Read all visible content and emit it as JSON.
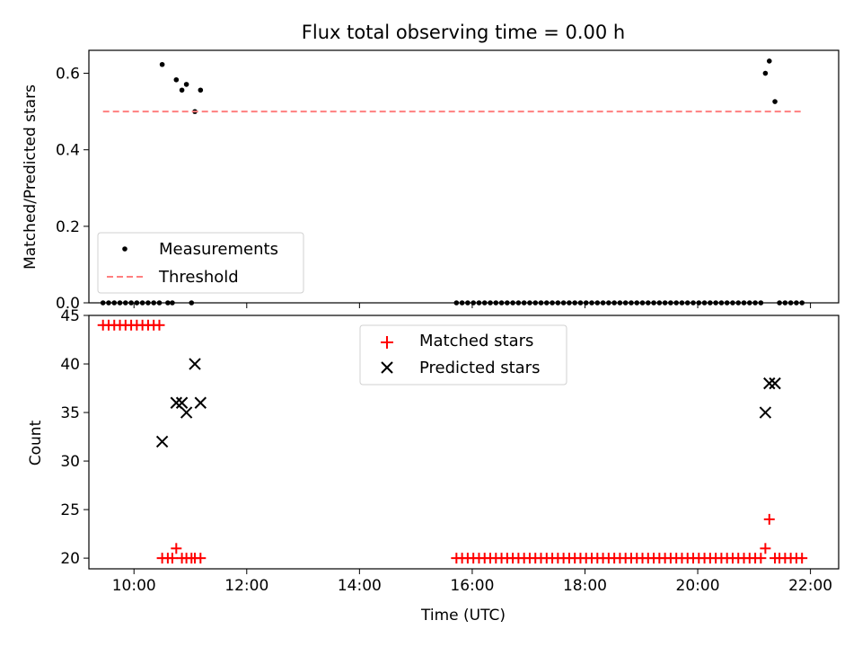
{
  "chart_data": [
    {
      "type": "scatter",
      "title": "Flux total observing time = 0.00 h",
      "xlabel": "",
      "ylabel": "Matched/Predicted stars",
      "xlim": [
        9.2,
        22.5
      ],
      "ylim": [
        0.0,
        0.66
      ],
      "yticks": [
        0.0,
        0.2,
        0.4,
        0.6
      ],
      "ytick_labels": [
        "0.0",
        "0.2",
        "0.4",
        "0.6"
      ],
      "xticks": [
        10,
        12,
        14,
        16,
        18,
        20,
        22
      ],
      "show_xtick_labels": false,
      "grid": false,
      "legend_position": "lower-left",
      "series": [
        {
          "name": "Measurements",
          "marker": "dot",
          "color": "#000000",
          "points": [
            [
              10.5,
              0.623
            ],
            [
              10.75,
              0.583
            ],
            [
              10.85,
              0.556
            ],
            [
              10.93,
              0.571
            ],
            [
              11.08,
              0.5
            ],
            [
              11.18,
              0.556
            ],
            [
              21.2,
              0.6
            ],
            [
              21.27,
              0.632
            ],
            [
              21.37,
              0.526
            ],
            [
              9.45,
              0.0
            ],
            [
              9.55,
              0.0
            ],
            [
              9.65,
              0.0
            ],
            [
              9.75,
              0.0
            ],
            [
              9.85,
              0.0
            ],
            [
              9.95,
              0.0
            ],
            [
              10.05,
              0.0
            ],
            [
              10.15,
              0.0
            ],
            [
              10.25,
              0.0
            ],
            [
              10.35,
              0.0
            ],
            [
              10.45,
              0.0
            ],
            [
              10.6,
              0.0
            ],
            [
              10.68,
              0.0
            ],
            [
              11.02,
              0.0
            ],
            [
              15.72,
              0.0
            ],
            [
              15.82,
              0.0
            ],
            [
              15.92,
              0.0
            ],
            [
              16.02,
              0.0
            ],
            [
              16.12,
              0.0
            ],
            [
              16.22,
              0.0
            ],
            [
              16.32,
              0.0
            ],
            [
              16.42,
              0.0
            ],
            [
              16.52,
              0.0
            ],
            [
              16.62,
              0.0
            ],
            [
              16.72,
              0.0
            ],
            [
              16.82,
              0.0
            ],
            [
              16.92,
              0.0
            ],
            [
              17.02,
              0.0
            ],
            [
              17.12,
              0.0
            ],
            [
              17.22,
              0.0
            ],
            [
              17.32,
              0.0
            ],
            [
              17.42,
              0.0
            ],
            [
              17.52,
              0.0
            ],
            [
              17.62,
              0.0
            ],
            [
              17.72,
              0.0
            ],
            [
              17.82,
              0.0
            ],
            [
              17.92,
              0.0
            ],
            [
              18.02,
              0.0
            ],
            [
              18.12,
              0.0
            ],
            [
              18.22,
              0.0
            ],
            [
              18.32,
              0.0
            ],
            [
              18.42,
              0.0
            ],
            [
              18.52,
              0.0
            ],
            [
              18.62,
              0.0
            ],
            [
              18.72,
              0.0
            ],
            [
              18.82,
              0.0
            ],
            [
              18.92,
              0.0
            ],
            [
              19.02,
              0.0
            ],
            [
              19.12,
              0.0
            ],
            [
              19.22,
              0.0
            ],
            [
              19.32,
              0.0
            ],
            [
              19.42,
              0.0
            ],
            [
              19.52,
              0.0
            ],
            [
              19.62,
              0.0
            ],
            [
              19.72,
              0.0
            ],
            [
              19.82,
              0.0
            ],
            [
              19.92,
              0.0
            ],
            [
              20.02,
              0.0
            ],
            [
              20.12,
              0.0
            ],
            [
              20.22,
              0.0
            ],
            [
              20.32,
              0.0
            ],
            [
              20.42,
              0.0
            ],
            [
              20.52,
              0.0
            ],
            [
              20.62,
              0.0
            ],
            [
              20.72,
              0.0
            ],
            [
              20.82,
              0.0
            ],
            [
              20.92,
              0.0
            ],
            [
              21.02,
              0.0
            ],
            [
              21.12,
              0.0
            ],
            [
              21.45,
              0.0
            ],
            [
              21.55,
              0.0
            ],
            [
              21.65,
              0.0
            ],
            [
              21.75,
              0.0
            ],
            [
              21.85,
              0.0
            ]
          ]
        },
        {
          "name": "Threshold",
          "type": "line",
          "style": "dashed",
          "color": "#ff7f7f",
          "points": [
            [
              9.45,
              0.5
            ],
            [
              21.85,
              0.5
            ]
          ]
        }
      ]
    },
    {
      "type": "scatter",
      "title": "",
      "xlabel": "Time (UTC)",
      "ylabel": "Count",
      "xlim": [
        9.2,
        22.5
      ],
      "ylim": [
        18.9,
        45.0
      ],
      "yticks": [
        20,
        25,
        30,
        35,
        40,
        45
      ],
      "ytick_labels": [
        "20",
        "25",
        "30",
        "35",
        "40",
        "45"
      ],
      "xticks": [
        10,
        12,
        14,
        16,
        18,
        20,
        22
      ],
      "xtick_labels": [
        "10:00",
        "12:00",
        "14:00",
        "16:00",
        "18:00",
        "20:00",
        "22:00"
      ],
      "show_xtick_labels": true,
      "grid": false,
      "legend_position": "upper-center",
      "series": [
        {
          "name": "Matched stars",
          "marker": "plus",
          "color": "#ff0000",
          "points": [
            [
              9.45,
              44
            ],
            [
              9.55,
              44
            ],
            [
              9.65,
              44
            ],
            [
              9.75,
              44
            ],
            [
              9.85,
              44
            ],
            [
              9.95,
              44
            ],
            [
              10.05,
              44
            ],
            [
              10.15,
              44
            ],
            [
              10.25,
              44
            ],
            [
              10.35,
              44
            ],
            [
              10.45,
              44
            ],
            [
              10.5,
              20
            ],
            [
              10.6,
              20
            ],
            [
              10.68,
              20
            ],
            [
              10.75,
              21
            ],
            [
              10.85,
              20
            ],
            [
              10.93,
              20
            ],
            [
              11.02,
              20
            ],
            [
              11.08,
              20
            ],
            [
              11.18,
              20
            ],
            [
              15.72,
              20
            ],
            [
              15.82,
              20
            ],
            [
              15.92,
              20
            ],
            [
              16.02,
              20
            ],
            [
              16.12,
              20
            ],
            [
              16.22,
              20
            ],
            [
              16.32,
              20
            ],
            [
              16.42,
              20
            ],
            [
              16.52,
              20
            ],
            [
              16.62,
              20
            ],
            [
              16.72,
              20
            ],
            [
              16.82,
              20
            ],
            [
              16.92,
              20
            ],
            [
              17.02,
              20
            ],
            [
              17.12,
              20
            ],
            [
              17.22,
              20
            ],
            [
              17.32,
              20
            ],
            [
              17.42,
              20
            ],
            [
              17.52,
              20
            ],
            [
              17.62,
              20
            ],
            [
              17.72,
              20
            ],
            [
              17.82,
              20
            ],
            [
              17.92,
              20
            ],
            [
              18.02,
              20
            ],
            [
              18.12,
              20
            ],
            [
              18.22,
              20
            ],
            [
              18.32,
              20
            ],
            [
              18.42,
              20
            ],
            [
              18.52,
              20
            ],
            [
              18.62,
              20
            ],
            [
              18.72,
              20
            ],
            [
              18.82,
              20
            ],
            [
              18.92,
              20
            ],
            [
              19.02,
              20
            ],
            [
              19.12,
              20
            ],
            [
              19.22,
              20
            ],
            [
              19.32,
              20
            ],
            [
              19.42,
              20
            ],
            [
              19.52,
              20
            ],
            [
              19.62,
              20
            ],
            [
              19.72,
              20
            ],
            [
              19.82,
              20
            ],
            [
              19.92,
              20
            ],
            [
              20.02,
              20
            ],
            [
              20.12,
              20
            ],
            [
              20.22,
              20
            ],
            [
              20.32,
              20
            ],
            [
              20.42,
              20
            ],
            [
              20.52,
              20
            ],
            [
              20.62,
              20
            ],
            [
              20.72,
              20
            ],
            [
              20.82,
              20
            ],
            [
              20.92,
              20
            ],
            [
              21.02,
              20
            ],
            [
              21.12,
              20
            ],
            [
              21.2,
              21
            ],
            [
              21.27,
              24
            ],
            [
              21.37,
              20
            ],
            [
              21.45,
              20
            ],
            [
              21.55,
              20
            ],
            [
              21.65,
              20
            ],
            [
              21.75,
              20
            ],
            [
              21.85,
              20
            ]
          ]
        },
        {
          "name": "Predicted stars",
          "marker": "x",
          "color": "#000000",
          "points": [
            [
              10.5,
              32
            ],
            [
              10.75,
              36
            ],
            [
              10.85,
              36
            ],
            [
              10.93,
              35
            ],
            [
              11.08,
              40
            ],
            [
              11.18,
              36
            ],
            [
              21.2,
              35
            ],
            [
              21.27,
              38
            ],
            [
              21.37,
              38
            ]
          ]
        }
      ]
    }
  ]
}
